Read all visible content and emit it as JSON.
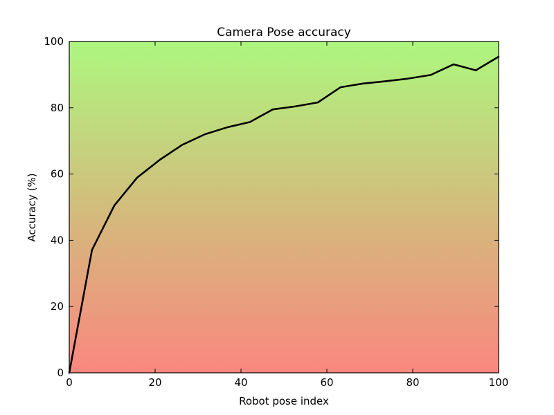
{
  "chart_data": {
    "type": "line",
    "title": "Camera Pose accuracy",
    "xlabel": "Robot pose index",
    "ylabel": "Accuracy (%)",
    "xlim": [
      0,
      100
    ],
    "ylim": [
      0,
      100
    ],
    "xticks": [
      0,
      20,
      40,
      60,
      80,
      100
    ],
    "yticks": [
      0,
      20,
      40,
      60,
      80,
      100
    ],
    "grid": false,
    "background_gradient": {
      "top_color": "#adf77f",
      "middle_color": "#d6b77c",
      "bottom_color": "#fa877f"
    },
    "series": [
      {
        "color": "#000000",
        "x": [
          0,
          5.3,
          10.5,
          15.8,
          21.1,
          26.3,
          31.6,
          36.8,
          42.1,
          47.4,
          52.6,
          57.9,
          63.2,
          68.4,
          73.7,
          78.9,
          84.2,
          89.5,
          94.7,
          100
        ],
        "y": [
          0,
          37.1,
          50.5,
          58.9,
          64.3,
          68.8,
          72.0,
          74.1,
          75.7,
          79.5,
          80.4,
          81.6,
          86.2,
          87.3,
          88.0,
          88.8,
          89.9,
          93.1,
          91.3,
          95.4
        ]
      }
    ]
  }
}
